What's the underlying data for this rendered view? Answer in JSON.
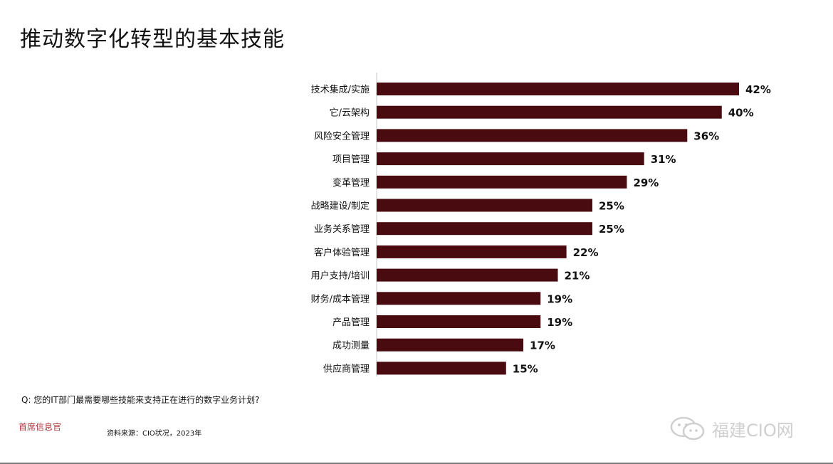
{
  "title": "推动数字化转型的基本技能",
  "question": "Q: 您的IT部门最需要哪些技能来支持正在进行的数字业务计划?",
  "brand": "首席信息官",
  "source": "资料来源：CIO状况，2023年",
  "watermark": "福建CIO网",
  "colors": {
    "bar": "#4a0b10",
    "axis": "#c8c8c8"
  },
  "chart_data": {
    "type": "bar",
    "orientation": "horizontal",
    "title": "推动数字化转型的基本技能",
    "categories": [
      "技术集成/实施",
      "它/云架构",
      "风险安全管理",
      "项目管理",
      "变革管理",
      "战略建设/制定",
      "业务关系管理",
      "客户体验管理",
      "用户支持/培训",
      "财务/成本管理",
      "产品管理",
      "成功测量",
      "供应商管理"
    ],
    "values": [
      42,
      40,
      36,
      31,
      29,
      25,
      25,
      22,
      21,
      19,
      19,
      17,
      15
    ],
    "value_labels": [
      "42%",
      "40%",
      "36%",
      "31%",
      "29%",
      "25%",
      "25%",
      "22%",
      "21%",
      "19%",
      "19%",
      "17%",
      "15%"
    ],
    "unit": "%",
    "xlim": [
      0,
      42
    ],
    "grid": false,
    "legend": "none"
  }
}
